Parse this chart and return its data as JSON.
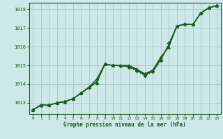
{
  "xlabel": "Graphe pression niveau de la mer (hPa)",
  "bg_color": "#cce8e8",
  "grid_color": "#aacccc",
  "line_color": "#1a5c1a",
  "xlim": [
    -0.5,
    23.5
  ],
  "ylim": [
    1012.4,
    1018.35
  ],
  "yticks": [
    1013,
    1014,
    1015,
    1016,
    1017,
    1018
  ],
  "xticks": [
    0,
    1,
    2,
    3,
    4,
    5,
    6,
    7,
    8,
    9,
    10,
    11,
    12,
    13,
    14,
    15,
    16,
    17,
    18,
    19,
    20,
    21,
    22,
    23
  ],
  "series": [
    {
      "x": [
        0,
        1,
        2,
        3,
        4,
        5,
        6,
        7,
        8,
        9,
        10,
        11,
        12,
        13,
        14,
        15,
        16,
        17,
        18,
        19,
        20,
        21,
        22,
        23
      ],
      "y": [
        1012.62,
        1012.85,
        1012.87,
        1012.98,
        1013.08,
        1013.22,
        1013.5,
        1013.8,
        1014.05,
        1015.08,
        1015.0,
        1014.98,
        1014.9,
        1014.7,
        1014.45,
        1014.65,
        1015.25,
        1016.2,
        1017.1,
        1017.2,
        1017.18,
        1017.8,
        1018.08,
        1018.2
      ],
      "linestyle": ":",
      "marker": "D",
      "markersize": 2.5,
      "linewidth": 1.0
    },
    {
      "x": [
        0,
        1,
        2,
        3,
        4,
        5,
        6,
        7,
        8,
        9,
        10,
        11,
        12,
        13,
        14,
        15,
        16,
        17,
        18,
        19,
        20,
        21,
        22,
        23
      ],
      "y": [
        1012.62,
        1012.9,
        1012.87,
        1013.0,
        1013.05,
        1013.22,
        1013.52,
        1013.85,
        1014.28,
        1015.08,
        1015.0,
        1015.0,
        1015.0,
        1014.8,
        1014.55,
        1014.75,
        1015.45,
        1015.98,
        1017.1,
        1017.22,
        1017.18,
        1017.8,
        1018.08,
        1018.2
      ],
      "linestyle": "-",
      "marker": "^",
      "markersize": 3.0,
      "linewidth": 1.0
    },
    {
      "x": [
        0,
        1,
        2,
        3,
        4,
        5,
        6,
        7,
        8,
        9,
        10,
        11,
        12,
        13,
        14,
        15,
        16,
        17,
        18,
        19,
        20,
        21,
        22,
        23
      ],
      "y": [
        1012.62,
        1012.87,
        1012.87,
        1012.99,
        1013.06,
        1013.22,
        1013.5,
        1013.83,
        1014.15,
        1015.06,
        1015.0,
        1014.99,
        1014.95,
        1014.75,
        1014.5,
        1014.7,
        1015.35,
        1016.1,
        1017.1,
        1017.21,
        1017.18,
        1017.8,
        1018.08,
        1018.2
      ],
      "linestyle": "-",
      "marker": null,
      "markersize": 0,
      "linewidth": 0.9
    },
    {
      "x": [
        0,
        1,
        2,
        3,
        4,
        5,
        6,
        7,
        8,
        9,
        10,
        11,
        12,
        13,
        14,
        15,
        16,
        17,
        18,
        19,
        20,
        21,
        22,
        23
      ],
      "y": [
        1012.62,
        1012.87,
        1012.87,
        1012.99,
        1013.06,
        1013.22,
        1013.5,
        1013.82,
        1014.12,
        1015.05,
        1015.0,
        1014.99,
        1014.93,
        1014.73,
        1014.48,
        1014.68,
        1015.32,
        1016.08,
        1017.1,
        1017.2,
        1017.18,
        1017.8,
        1018.08,
        1018.2
      ],
      "linestyle": "-",
      "marker": null,
      "markersize": 0,
      "linewidth": 0.9
    }
  ]
}
